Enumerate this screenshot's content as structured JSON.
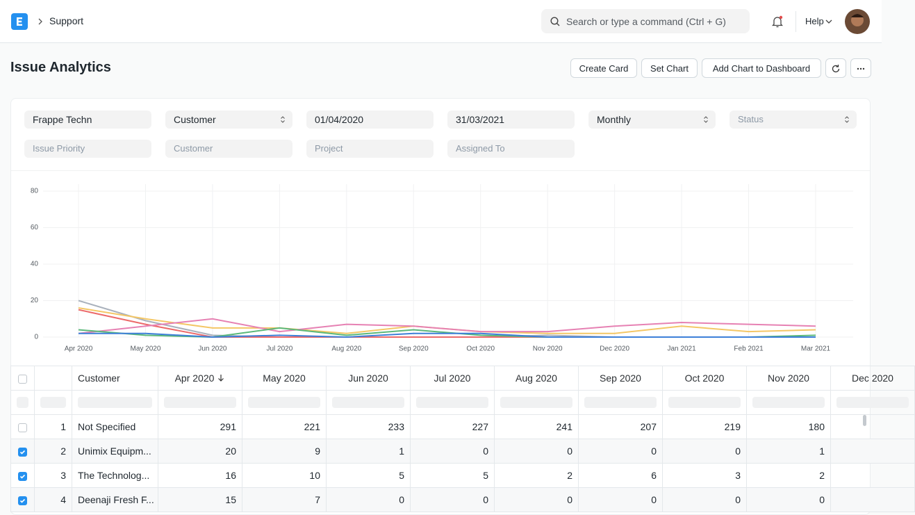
{
  "navbar": {
    "breadcrumb": "Support",
    "search_placeholder": "Search or type a command (Ctrl + G)",
    "help": "Help"
  },
  "page": {
    "title": "Issue Analytics",
    "buttons": [
      "Create Card",
      "Set Chart",
      "Add Chart to Dashboard"
    ]
  },
  "filters": [
    [
      {
        "text": "Frappe Techn"
      },
      {
        "text": "Customer",
        "dropdown": true
      },
      {
        "text": "01/04/2020"
      },
      {
        "text": "31/03/2021"
      },
      {
        "text": "Monthly",
        "dropdown": true
      },
      {
        "text": "Status",
        "dropdown": true,
        "placeholder": true
      }
    ],
    [
      {
        "text": "Issue Priority",
        "placeholder": true
      },
      {
        "text": "Customer",
        "placeholder": true
      },
      {
        "text": "Project",
        "placeholder": true
      },
      {
        "text": "Assigned To",
        "placeholder": true
      }
    ]
  ],
  "chart_data": {
    "type": "line",
    "categories": [
      "Apr 2020",
      "May 2020",
      "Jun 2020",
      "Jul 2020",
      "Aug 2020",
      "Sep 2020",
      "Oct 2020",
      "Nov 2020",
      "Dec 2020",
      "Jan 2021",
      "Feb 2021",
      "Mar 2021"
    ],
    "series": [
      {
        "color": "#a9b1bc",
        "values": [
          20,
          9,
          1,
          0,
          0,
          0,
          0,
          1,
          0,
          0,
          0,
          0
        ]
      },
      {
        "color": "#f4c766",
        "values": [
          16,
          10,
          5,
          5,
          2,
          6,
          3,
          2,
          2,
          6,
          3,
          4
        ]
      },
      {
        "color": "#ec6a6a",
        "values": [
          15,
          7,
          0,
          0,
          0,
          0,
          0,
          0,
          0,
          0,
          0,
          0
        ]
      },
      {
        "color": "#e681b3",
        "values": [
          2,
          6,
          10,
          3,
          7,
          6,
          3,
          3,
          6,
          8,
          7,
          6
        ]
      },
      {
        "color": "#5bb87a",
        "values": [
          4,
          1,
          0,
          5,
          1,
          4,
          1,
          0,
          0,
          0,
          0,
          1
        ]
      },
      {
        "color": "#3d7fd8",
        "values": [
          2,
          2,
          0,
          1,
          0,
          2,
          2,
          0,
          0,
          0,
          0,
          0
        ]
      }
    ],
    "ylim": [
      0,
      80
    ],
    "yticks": [
      0,
      20,
      40,
      60,
      80
    ],
    "grid": true
  },
  "table": {
    "columns": [
      "Customer",
      "Apr 2020",
      "May 2020",
      "Jun 2020",
      "Jul 2020",
      "Aug 2020",
      "Sep 2020",
      "Oct 2020",
      "Nov 2020",
      "Dec 2020"
    ],
    "sort_column": 1,
    "rows": [
      {
        "checked": false,
        "cells": [
          1,
          "Not Specified",
          291,
          221,
          233,
          227,
          241,
          207,
          219,
          180
        ]
      },
      {
        "checked": true,
        "cells": [
          2,
          "Unimix Equipm...",
          20,
          9,
          1,
          0,
          0,
          0,
          0,
          1
        ]
      },
      {
        "checked": true,
        "cells": [
          3,
          "The Technolog...",
          16,
          10,
          5,
          5,
          2,
          6,
          3,
          2
        ]
      },
      {
        "checked": true,
        "cells": [
          4,
          "Deenaji Fresh F...",
          15,
          7,
          0,
          0,
          0,
          0,
          0,
          0
        ]
      }
    ]
  }
}
